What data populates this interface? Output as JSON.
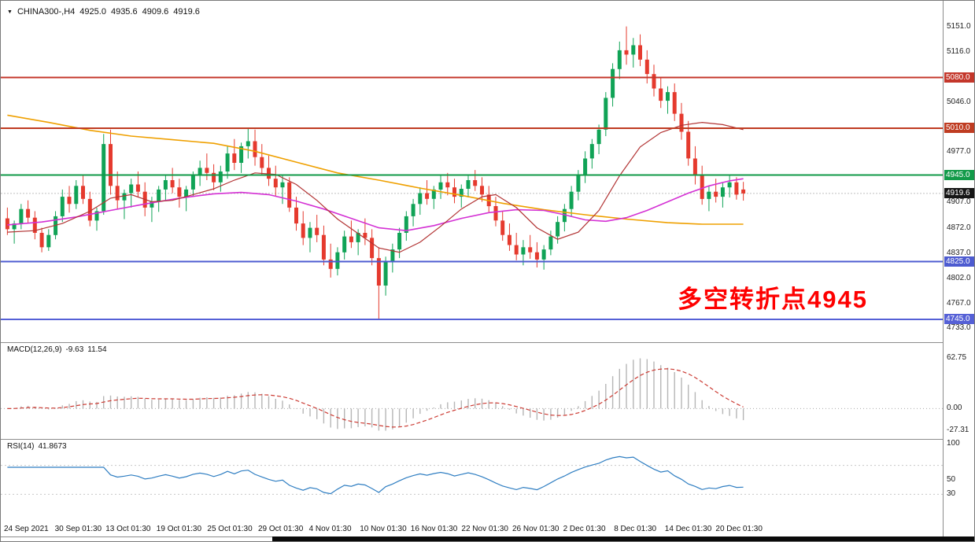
{
  "header": {
    "dropdown_icon": "▼",
    "symbol": "CHINA300-,H4",
    "open": "4925.0",
    "high": "4935.6",
    "low": "4909.6",
    "close": "4919.6"
  },
  "annotation": {
    "text": "多空转折点4945",
    "color": "#fe0000"
  },
  "indicators": {
    "macd_label": "MACD(12,26,9)",
    "macd_main": "-9.63",
    "macd_signal": "11.54",
    "rsi_label": "RSI(14)",
    "rsi_value": "41.8673"
  },
  "levels": [
    {
      "label": "5080.0",
      "value": 5080,
      "color": "#c4372b"
    },
    {
      "label": "5010.0",
      "value": 5010,
      "color": "#bf3c22"
    },
    {
      "label": "4945.0",
      "value": 4945,
      "color": "#129a49"
    },
    {
      "label": "4825.0",
      "value": 4825,
      "color": "#4d5bd0"
    },
    {
      "label": "4745.0",
      "value": 4745,
      "color": "#5560d6"
    }
  ],
  "current_price": {
    "label": "4919.6",
    "value": 4919.6,
    "badge_color": "#161616"
  },
  "colors": {
    "candle_up": "#10a356",
    "candle_down": "#e53a2e",
    "current_line": "#c0c0c0",
    "macd_hist": "#b6b6b6",
    "macd_signal": "#cc3b33",
    "rsi_line": "#2f7ec2",
    "rsi_levels_line": "#c8c8c8"
  },
  "axes": {
    "price_ticks": [
      {
        "label": "5151.0",
        "value": 5151
      },
      {
        "label": "5116.0",
        "value": 5116
      },
      {
        "label": "5046.0",
        "value": 5046
      },
      {
        "label": "4977.0",
        "value": 4977
      },
      {
        "label": "4907.0",
        "value": 4907
      },
      {
        "label": "4872.0",
        "value": 4872
      },
      {
        "label": "4837.0",
        "value": 4837
      },
      {
        "label": "4802.0",
        "value": 4802
      },
      {
        "label": "4767.0",
        "value": 4767
      },
      {
        "label": "4733.0",
        "value": 4733
      }
    ],
    "macd_ticks": [
      {
        "label": "62.75",
        "value": 62.75
      },
      {
        "label": "0.00",
        "value": 0
      },
      {
        "label": "-27.31",
        "value": -27.31
      }
    ],
    "rsi_ticks": [
      {
        "label": "100",
        "value": 100
      },
      {
        "label": "50",
        "value": 50
      },
      {
        "label": "30",
        "value": 30
      }
    ],
    "time_labels": [
      "24 Sep 2021",
      "30 Sep 01:30",
      "13 Oct 01:30",
      "19 Oct 01:30",
      "25 Oct 01:30",
      "29 Oct 01:30",
      "4 Nov 01:30",
      "10 Nov 01:30",
      "16 Nov 01:30",
      "22 Nov 01:30",
      "26 Nov 01:30",
      "2 Dec 01:30",
      "8 Dec 01:30",
      "14 Dec 01:30",
      "20 Dec 01:30"
    ]
  },
  "chart_data": {
    "type": "candlestick",
    "symbol": "CHINA300-",
    "timeframe": "H4",
    "price_axis": {
      "min": 4720,
      "max": 5180
    },
    "candles": [
      [
        4885,
        4900,
        4862,
        4870
      ],
      [
        4870,
        4882,
        4850,
        4878
      ],
      [
        4878,
        4905,
        4870,
        4898
      ],
      [
        4898,
        4910,
        4878,
        4886
      ],
      [
        4886,
        4895,
        4856,
        4865
      ],
      [
        4865,
        4872,
        4838,
        4845
      ],
      [
        4845,
        4870,
        4840,
        4862
      ],
      [
        4862,
        4895,
        4856,
        4888
      ],
      [
        4888,
        4925,
        4880,
        4915
      ],
      [
        4915,
        4930,
        4893,
        4905
      ],
      [
        4905,
        4938,
        4898,
        4930
      ],
      [
        4930,
        4945,
        4905,
        4912
      ],
      [
        4912,
        4922,
        4874,
        4882
      ],
      [
        4882,
        4900,
        4868,
        4895
      ],
      [
        4895,
        5002,
        4890,
        4988
      ],
      [
        4988,
        5008,
        4918,
        4930
      ],
      [
        4930,
        4950,
        4898,
        4910
      ],
      [
        4910,
        4925,
        4884,
        4920
      ],
      [
        4920,
        4940,
        4900,
        4932
      ],
      [
        4932,
        4950,
        4914,
        4922
      ],
      [
        4922,
        4935,
        4888,
        4900
      ],
      [
        4900,
        4915,
        4880,
        4908
      ],
      [
        4908,
        4930,
        4894,
        4925
      ],
      [
        4925,
        4945,
        4910,
        4938
      ],
      [
        4938,
        4955,
        4920,
        4928
      ],
      [
        4928,
        4940,
        4900,
        4915
      ],
      [
        4915,
        4930,
        4895,
        4925
      ],
      [
        4925,
        4950,
        4915,
        4945
      ],
      [
        4945,
        4965,
        4930,
        4955
      ],
      [
        4955,
        4975,
        4938,
        4948
      ],
      [
        4948,
        4960,
        4924,
        4935
      ],
      [
        4935,
        4958,
        4922,
        4950
      ],
      [
        4950,
        4985,
        4940,
        4975
      ],
      [
        4975,
        4995,
        4952,
        4962
      ],
      [
        4962,
        4990,
        4948,
        4985
      ],
      [
        4985,
        5010,
        4968,
        4992
      ],
      [
        4992,
        5008,
        4958,
        4970
      ],
      [
        4970,
        4988,
        4944,
        4955
      ],
      [
        4955,
        4972,
        4930,
        4940
      ],
      [
        4940,
        4958,
        4916,
        4928
      ],
      [
        4928,
        4945,
        4905,
        4935
      ],
      [
        4935,
        4942,
        4894,
        4900
      ],
      [
        4900,
        4915,
        4868,
        4878
      ],
      [
        4878,
        4895,
        4848,
        4858
      ],
      [
        4858,
        4880,
        4838,
        4872
      ],
      [
        4872,
        4890,
        4852,
        4862
      ],
      [
        4862,
        4875,
        4820,
        4828
      ],
      [
        4828,
        4850,
        4803,
        4815
      ],
      [
        4815,
        4845,
        4806,
        4838
      ],
      [
        4838,
        4868,
        4828,
        4860
      ],
      [
        4860,
        4882,
        4844,
        4852
      ],
      [
        4852,
        4870,
        4834,
        4865
      ],
      [
        4865,
        4885,
        4848,
        4858
      ],
      [
        4858,
        4870,
        4820,
        4830
      ],
      [
        4830,
        4845,
        4746,
        4792
      ],
      [
        4792,
        4832,
        4778,
        4825
      ],
      [
        4825,
        4850,
        4810,
        4842
      ],
      [
        4842,
        4872,
        4830,
        4865
      ],
      [
        4865,
        4895,
        4854,
        4888
      ],
      [
        4888,
        4912,
        4874,
        4905
      ],
      [
        4905,
        4928,
        4890,
        4920
      ],
      [
        4920,
        4938,
        4904,
        4912
      ],
      [
        4912,
        4930,
        4898,
        4925
      ],
      [
        4925,
        4945,
        4912,
        4935
      ],
      [
        4935,
        4948,
        4917,
        4928
      ],
      [
        4928,
        4940,
        4906,
        4915
      ],
      [
        4915,
        4932,
        4900,
        4926
      ],
      [
        4926,
        4945,
        4914,
        4938
      ],
      [
        4938,
        4952,
        4923,
        4930
      ],
      [
        4930,
        4942,
        4908,
        4918
      ],
      [
        4918,
        4930,
        4894,
        4902
      ],
      [
        4902,
        4915,
        4874,
        4882
      ],
      [
        4882,
        4895,
        4854,
        4862
      ],
      [
        4862,
        4878,
        4840,
        4848
      ],
      [
        4848,
        4865,
        4827,
        4835
      ],
      [
        4835,
        4855,
        4820,
        4845
      ],
      [
        4845,
        4862,
        4829,
        4838
      ],
      [
        4838,
        4852,
        4817,
        4828
      ],
      [
        4828,
        4848,
        4814,
        4842
      ],
      [
        4842,
        4868,
        4834,
        4860
      ],
      [
        4860,
        4888,
        4850,
        4880
      ],
      [
        4880,
        4905,
        4867,
        4898
      ],
      [
        4898,
        4930,
        4888,
        4922
      ],
      [
        4922,
        4952,
        4910,
        4945
      ],
      [
        4945,
        4978,
        4934,
        4968
      ],
      [
        4968,
        4995,
        4954,
        4988
      ],
      [
        4988,
        5015,
        4974,
        5008
      ],
      [
        5008,
        5060,
        4999,
        5052
      ],
      [
        5052,
        5100,
        5040,
        5092
      ],
      [
        5092,
        5130,
        5078,
        5118
      ],
      [
        5118,
        5151,
        5098,
        5112
      ],
      [
        5112,
        5135,
        5094,
        5125
      ],
      [
        5125,
        5140,
        5096,
        5105
      ],
      [
        5105,
        5118,
        5072,
        5085
      ],
      [
        5085,
        5098,
        5054,
        5065
      ],
      [
        5065,
        5080,
        5038,
        5048
      ],
      [
        5048,
        5068,
        5030,
        5060
      ],
      [
        5060,
        5072,
        5020,
        5030
      ],
      [
        5030,
        5045,
        4994,
        5005
      ],
      [
        5005,
        5020,
        4958,
        4968
      ],
      [
        4968,
        4985,
        4932,
        4945
      ],
      [
        4945,
        4958,
        4904,
        4912
      ],
      [
        4912,
        4930,
        4895,
        4922
      ],
      [
        4922,
        4940,
        4907,
        4915
      ],
      [
        4915,
        4935,
        4900,
        4928
      ],
      [
        4928,
        4945,
        4914,
        4935
      ],
      [
        4935,
        4942,
        4911,
        4918
      ],
      [
        4925,
        4935.6,
        4909.6,
        4919.6
      ]
    ],
    "ma_lines": [
      {
        "name": "ma-long-orange",
        "color": "#efa000",
        "width": 1.6,
        "points": [
          [
            0,
            5028
          ],
          [
            6,
            5018
          ],
          [
            12,
            5007
          ],
          [
            18,
            4999
          ],
          [
            24,
            4994
          ],
          [
            30,
            4989
          ],
          [
            36,
            4978
          ],
          [
            42,
            4963
          ],
          [
            48,
            4948
          ],
          [
            54,
            4938
          ],
          [
            60,
            4927
          ],
          [
            66,
            4917
          ],
          [
            72,
            4906
          ],
          [
            78,
            4897
          ],
          [
            84,
            4890
          ],
          [
            90,
            4884
          ],
          [
            96,
            4879
          ],
          [
            101,
            4877
          ],
          [
            107,
            4877
          ]
        ]
      },
      {
        "name": "ma-mid-magenta",
        "color": "#d431d4",
        "width": 1.6,
        "points": [
          [
            0,
            4876
          ],
          [
            5,
            4880
          ],
          [
            10,
            4887
          ],
          [
            15,
            4896
          ],
          [
            20,
            4905
          ],
          [
            25,
            4913
          ],
          [
            30,
            4919
          ],
          [
            34,
            4921
          ],
          [
            38,
            4918
          ],
          [
            42,
            4909
          ],
          [
            46,
            4898
          ],
          [
            50,
            4885
          ],
          [
            54,
            4872
          ],
          [
            58,
            4868
          ],
          [
            62,
            4875
          ],
          [
            66,
            4885
          ],
          [
            70,
            4893
          ],
          [
            74,
            4897
          ],
          [
            78,
            4896
          ],
          [
            81,
            4890
          ],
          [
            84,
            4883
          ],
          [
            87,
            4881
          ],
          [
            90,
            4886
          ],
          [
            93,
            4896
          ],
          [
            96,
            4908
          ],
          [
            99,
            4920
          ],
          [
            102,
            4930
          ],
          [
            105,
            4937
          ],
          [
            107,
            4940
          ]
        ]
      },
      {
        "name": "ma-fast-darkred",
        "color": "#b23434",
        "width": 1.2,
        "points": [
          [
            0,
            4866
          ],
          [
            4,
            4868
          ],
          [
            8,
            4878
          ],
          [
            12,
            4895
          ],
          [
            15,
            4913
          ],
          [
            18,
            4918
          ],
          [
            21,
            4908
          ],
          [
            24,
            4910
          ],
          [
            27,
            4918
          ],
          [
            30,
            4926
          ],
          [
            33,
            4938
          ],
          [
            36,
            4948
          ],
          [
            39,
            4946
          ],
          [
            42,
            4932
          ],
          [
            45,
            4910
          ],
          [
            48,
            4884
          ],
          [
            51,
            4864
          ],
          [
            54,
            4844
          ],
          [
            57,
            4838
          ],
          [
            60,
            4852
          ],
          [
            63,
            4874
          ],
          [
            66,
            4898
          ],
          [
            69,
            4915
          ],
          [
            71,
            4918
          ],
          [
            74,
            4900
          ],
          [
            77,
            4872
          ],
          [
            80,
            4856
          ],
          [
            83,
            4866
          ],
          [
            86,
            4896
          ],
          [
            89,
            4944
          ],
          [
            92,
            4984
          ],
          [
            95,
            5004
          ],
          [
            98,
            5014
          ],
          [
            101,
            5018
          ],
          [
            104,
            5015
          ],
          [
            107,
            5008
          ]
        ]
      }
    ],
    "macd": {
      "params": [
        12,
        26,
        9
      ],
      "main_last": -9.63,
      "signal_last": 11.54,
      "axis_max": 62.75,
      "axis_min": -27.31
    },
    "rsi": {
      "period": 14,
      "last": 41.8673,
      "levels": [
        70,
        30
      ]
    }
  }
}
